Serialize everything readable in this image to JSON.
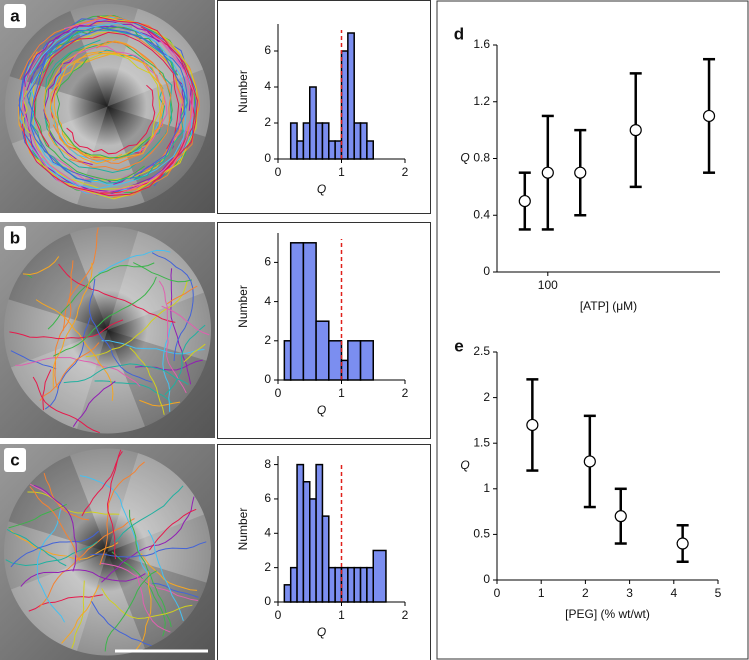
{
  "chart_data": [
    {
      "type": "histogram",
      "panel": "a",
      "xlabel": "Q",
      "ylabel": "Number",
      "bins": [
        0.2,
        0.3,
        0.4,
        0.5,
        0.6,
        0.7,
        0.8,
        0.9,
        1.0,
        1.1,
        1.2,
        1.3,
        1.4,
        1.5,
        1.6
      ],
      "values": [
        2,
        1,
        2,
        4,
        2,
        2,
        1,
        1,
        6,
        7,
        2,
        2,
        1,
        0
      ],
      "color": "#7b8ef0",
      "reference_line": 1,
      "reference_color": "#e0201a",
      "xlim": [
        0,
        2
      ],
      "ylim": [
        0,
        7.5
      ],
      "xticks": [
        0,
        1,
        2
      ],
      "yticks": [
        0,
        2,
        4,
        6
      ]
    },
    {
      "type": "histogram",
      "panel": "b",
      "xlabel": "Q",
      "ylabel": "Number",
      "bins": [
        0.1,
        0.2,
        0.4,
        0.6,
        0.8,
        1.0,
        1.1,
        1.3,
        1.5
      ],
      "values": [
        2,
        7,
        7,
        3,
        2,
        1,
        2,
        2
      ],
      "color": "#7b8ef0",
      "reference_line": 1,
      "reference_color": "#e0201a",
      "xlim": [
        0,
        2
      ],
      "ylim": [
        0,
        7.5
      ],
      "xticks": [
        0,
        1,
        2
      ],
      "yticks": [
        0,
        2,
        4,
        6
      ]
    },
    {
      "type": "histogram",
      "panel": "c",
      "xlabel": "Q",
      "ylabel": "Number",
      "bins": [
        0.1,
        0.2,
        0.3,
        0.4,
        0.5,
        0.6,
        0.7,
        0.8,
        0.9,
        1.0,
        1.1,
        1.2,
        1.3,
        1.4,
        1.5,
        1.7
      ],
      "values": [
        1,
        2,
        8,
        7,
        6,
        8,
        5,
        2,
        2,
        2,
        2,
        2,
        2,
        2,
        3
      ],
      "color": "#7b8ef0",
      "reference_line": 1,
      "reference_color": "#e0201a",
      "xlim": [
        0,
        2
      ],
      "ylim": [
        0,
        8.5
      ],
      "xticks": [
        0,
        1,
        2
      ],
      "yticks": [
        0,
        2,
        4,
        6,
        8
      ]
    },
    {
      "type": "errorbar",
      "panel": "d",
      "xlabel": "[ATP] (μM)",
      "ylabel": "Q",
      "log_x": true,
      "x": [
        75,
        100,
        150,
        300,
        750
      ],
      "values": [
        0.5,
        0.7,
        0.7,
        1.0,
        1.1
      ],
      "errors": [
        0.2,
        0.4,
        0.3,
        0.4,
        0.4
      ],
      "xlim": [
        53,
        860
      ],
      "ylim": [
        0,
        1.6
      ],
      "xticks": [
        100
      ],
      "yticks": [
        0,
        0.4,
        0.8,
        1.2,
        1.6
      ]
    },
    {
      "type": "errorbar",
      "panel": "e",
      "xlabel": "[PEG] (% wt/wt)",
      "ylabel": "Q",
      "log_x": false,
      "x": [
        0.8,
        2.1,
        2.8,
        4.2
      ],
      "values": [
        1.7,
        1.3,
        0.7,
        0.4
      ],
      "errors": [
        0.5,
        0.5,
        0.3,
        0.2
      ],
      "xlim": [
        0,
        5
      ],
      "ylim": [
        0,
        2.5
      ],
      "xticks": [
        0,
        1,
        2,
        3,
        4,
        5
      ],
      "yticks": [
        0,
        0.5,
        1,
        1.5,
        2,
        2.5
      ]
    }
  ]
}
